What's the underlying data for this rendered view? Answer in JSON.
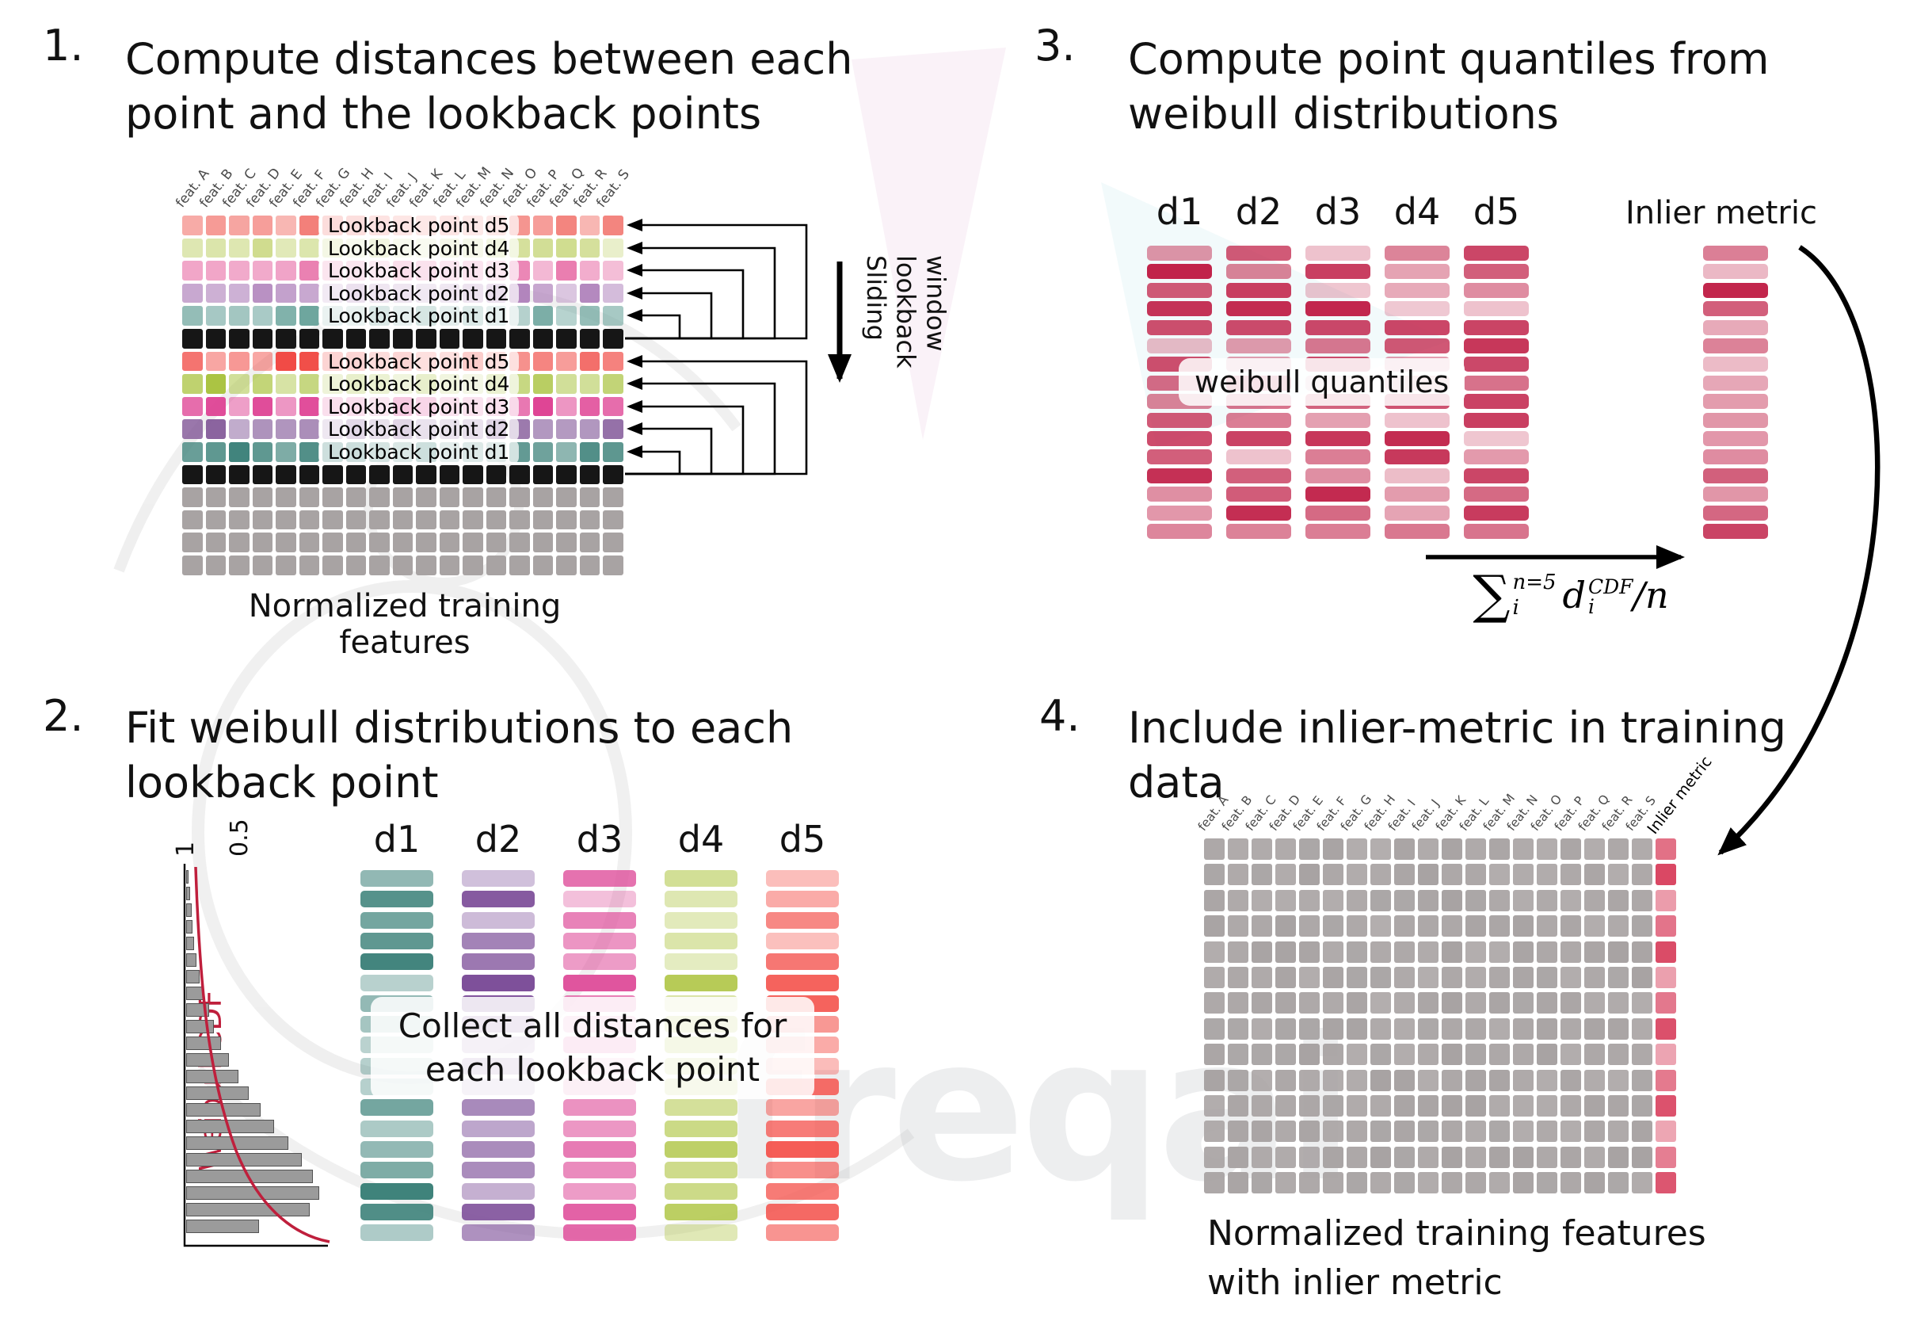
{
  "colors": {
    "black_row": "#161616",
    "gray_cell": "#a8a3a3",
    "crimson": "#c1234a",
    "inlier": "#d8415e",
    "arrow": "#000000",
    "weibull_curve": "#bf1f3c"
  },
  "features": [
    "feat. A",
    "feat. B",
    "feat. C",
    "feat. D",
    "feat. E",
    "feat. F",
    "feat. G",
    "feat. H",
    "feat. I",
    "feat. J",
    "feat. K",
    "feat. L",
    "feat. M",
    "feat. N",
    "feat. O",
    "feat. P",
    "feat. Q",
    "feat. R",
    "feat. S"
  ],
  "panel1": {
    "number": "1.",
    "title_lines": [
      "Compute distances between each",
      "point and the lookback points"
    ],
    "rows": [
      {
        "label": "Lookback point d5",
        "color": "#f3807a",
        "vary": true
      },
      {
        "label": "Lookback point d4",
        "color": "#cfdc8e",
        "vary": true
      },
      {
        "label": "Lookback point d3",
        "color": "#ea7eb0",
        "vary": true
      },
      {
        "label": "Lookback point d2",
        "color": "#b083bc",
        "vary": true
      },
      {
        "label": "Lookback point d1",
        "color": "#68a29a",
        "vary": true
      },
      {
        "label": "",
        "color": "#161616",
        "vary": false
      },
      {
        "label": "Lookback point d5",
        "color": "#f0443e",
        "vary": true
      },
      {
        "label": "Lookback point d4",
        "color": "#a9c33f",
        "vary": true
      },
      {
        "label": "Lookback point d3",
        "color": "#de3f92",
        "vary": true
      },
      {
        "label": "Lookback point d2",
        "color": "#7b4e92",
        "vary": true
      },
      {
        "label": "Lookback point d1",
        "color": "#3f837b",
        "vary": true
      },
      {
        "label": "",
        "color": "#161616",
        "vary": false
      },
      {
        "label": "",
        "color": "#a8a3a3",
        "vary": false
      },
      {
        "label": "",
        "color": "#a8a3a3",
        "vary": false
      },
      {
        "label": "",
        "color": "#a8a3a3",
        "vary": false
      },
      {
        "label": "",
        "color": "#a8a3a3",
        "vary": false
      }
    ],
    "sliding_lines": [
      "Sliding",
      "lookback",
      "window"
    ],
    "caption": "Normalized training features"
  },
  "panel2": {
    "number": "2.",
    "title_lines": [
      "Fit weibull distributions to each",
      "lookback point"
    ],
    "axis_ticks": [
      "1",
      "0.5"
    ],
    "cdf_label": "Weibull CDF",
    "histogram": {
      "type": "bar",
      "orientation": "horizontal",
      "values": [
        0.02,
        0.03,
        0.04,
        0.05,
        0.06,
        0.08,
        0.1,
        0.13,
        0.17,
        0.21,
        0.26,
        0.32,
        0.39,
        0.47,
        0.56,
        0.66,
        0.77,
        0.87,
        0.95,
        1.0,
        0.93,
        0.55
      ]
    },
    "columns": [
      {
        "label": "d1",
        "color": "#3f837b"
      },
      {
        "label": "d2",
        "color": "#7e509a"
      },
      {
        "label": "d3",
        "color": "#df4f9b"
      },
      {
        "label": "d4",
        "color": "#b3c84d"
      },
      {
        "label": "d5",
        "color": "#f4534d"
      }
    ],
    "overlay_lines": [
      "Collect all distances for",
      "each lookback point"
    ]
  },
  "panel3": {
    "number": "3.",
    "title_lines": [
      "Compute point quantiles from",
      "weibull distributions"
    ],
    "column_labels": [
      "d1",
      "d2",
      "d3",
      "d4",
      "d5"
    ],
    "chip": "weibull quantiles",
    "inlier_label": "Inlier metric",
    "formula": {
      "sum": "∑",
      "sum_sup": "n=5",
      "sum_sub": "i",
      "var": "d",
      "var_sup": "CDF",
      "var_sub": "i",
      "tail": "/n"
    }
  },
  "panel4": {
    "number": "4.",
    "title_lines": [
      "Include inlier-metric in training",
      "data"
    ],
    "inlier_feature_label": "Inlier metric",
    "caption_lines": [
      "Normalized training features",
      "with inlier metric"
    ],
    "grid": {
      "rows": 14,
      "cols": 20
    }
  },
  "watermark": "freqai"
}
